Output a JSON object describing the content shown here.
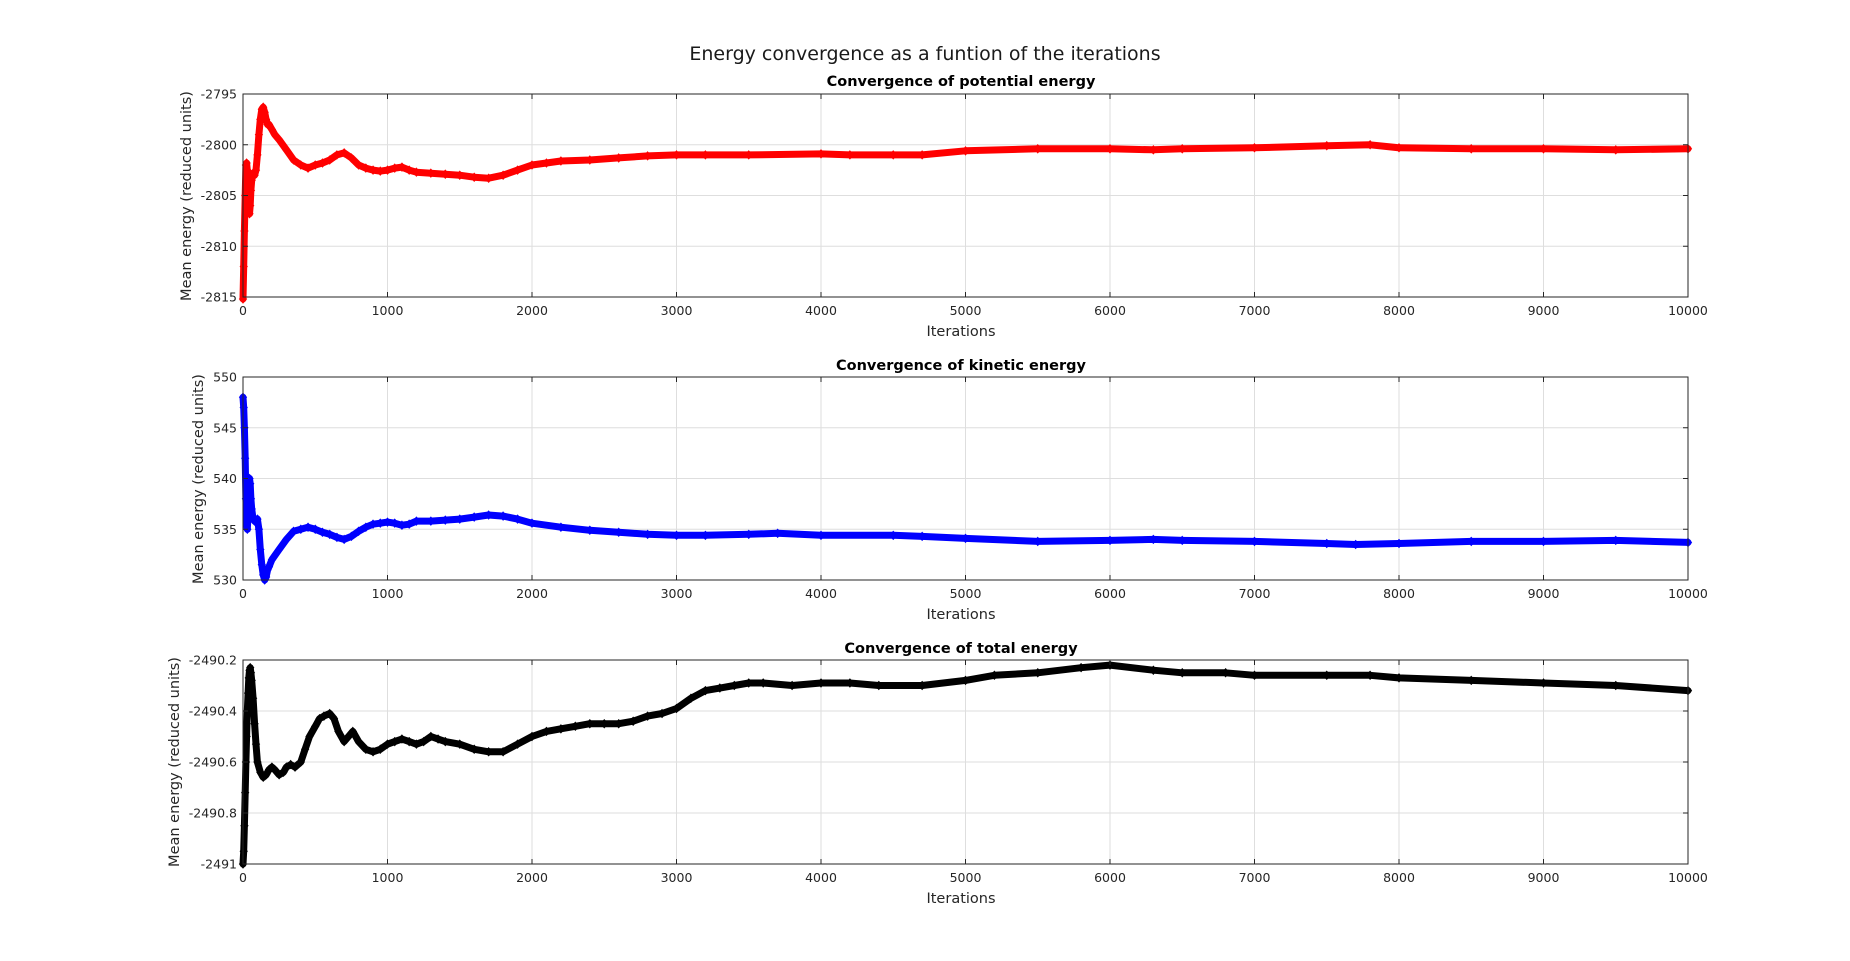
{
  "figure": {
    "title": "Energy convergence as a funtion of the iterations"
  },
  "chart_data": [
    {
      "type": "line",
      "marker": "diamond",
      "title": "Convergence of potential energy",
      "xlabel": "Iterations",
      "ylabel": "Mean energy (reduced units)",
      "xlim": [
        0,
        10000
      ],
      "ylim": [
        -2815,
        -2795
      ],
      "xticks": [
        0,
        1000,
        2000,
        3000,
        4000,
        5000,
        6000,
        7000,
        8000,
        9000,
        10000
      ],
      "yticks": [
        -2815,
        -2810,
        -2805,
        -2800,
        -2795
      ],
      "grid": true,
      "color": "#ff0000",
      "series": [
        {
          "x": [
            0,
            5,
            10,
            15,
            20,
            25,
            30,
            35,
            40,
            45,
            50,
            55,
            60,
            70,
            80,
            90,
            100,
            110,
            120,
            130,
            140,
            150,
            160,
            170,
            180,
            200,
            220,
            250,
            300,
            350,
            400,
            450,
            500,
            550,
            600,
            650,
            700,
            750,
            800,
            850,
            900,
            950,
            1000,
            1050,
            1100,
            1150,
            1200,
            1300,
            1400,
            1500,
            1600,
            1700,
            1800,
            1900,
            2000,
            2100,
            2200,
            2400,
            2600,
            2800,
            3000,
            3200,
            3500,
            4000,
            4200,
            4500,
            4700,
            5000,
            5500,
            6000,
            6300,
            6500,
            7000,
            7500,
            7800,
            8000,
            8500,
            9000,
            9500,
            10000
          ],
          "y": [
            -2815.2,
            -2812,
            -2808.5,
            -2805,
            -2802,
            -2801.8,
            -2802.5,
            -2804,
            -2806,
            -2806.8,
            -2806,
            -2804.5,
            -2803.5,
            -2802.8,
            -2803,
            -2802.5,
            -2801,
            -2799,
            -2797.5,
            -2796.5,
            -2796.3,
            -2796.8,
            -2797.5,
            -2798,
            -2798,
            -2798.5,
            -2799,
            -2799.5,
            -2800.5,
            -2801.5,
            -2802,
            -2802.3,
            -2802,
            -2801.8,
            -2801.5,
            -2801,
            -2800.8,
            -2801.3,
            -2802,
            -2802.3,
            -2802.5,
            -2802.6,
            -2802.5,
            -2802.3,
            -2802.2,
            -2802.5,
            -2802.7,
            -2802.8,
            -2802.9,
            -2803,
            -2803.2,
            -2803.3,
            -2803,
            -2802.5,
            -2802,
            -2801.8,
            -2801.6,
            -2801.5,
            -2801.3,
            -2801.1,
            -2801,
            -2801,
            -2801,
            -2800.9,
            -2801,
            -2801,
            -2801,
            -2800.6,
            -2800.4,
            -2800.4,
            -2800.5,
            -2800.4,
            -2800.3,
            -2800.1,
            -2800,
            -2800.3,
            -2800.4,
            -2800.4,
            -2800.5,
            -2800.4
          ]
        }
      ]
    },
    {
      "type": "line",
      "marker": "diamond",
      "title": "Convergence of kinetic energy",
      "xlabel": "Iterations",
      "ylabel": "Mean energy (reduced units)",
      "xlim": [
        0,
        10000
      ],
      "ylim": [
        530,
        550
      ],
      "xticks": [
        0,
        1000,
        2000,
        3000,
        4000,
        5000,
        6000,
        7000,
        8000,
        9000,
        10000
      ],
      "yticks": [
        530,
        535,
        540,
        545,
        550
      ],
      "grid": true,
      "color": "#0000ff",
      "series": [
        {
          "x": [
            0,
            5,
            10,
            15,
            20,
            25,
            30,
            35,
            40,
            45,
            50,
            55,
            60,
            70,
            80,
            90,
            100,
            110,
            120,
            130,
            140,
            150,
            160,
            170,
            180,
            200,
            250,
            300,
            350,
            400,
            450,
            500,
            550,
            600,
            650,
            700,
            750,
            800,
            850,
            900,
            950,
            1000,
            1050,
            1100,
            1150,
            1200,
            1300,
            1400,
            1500,
            1600,
            1700,
            1800,
            1900,
            2000,
            2200,
            2400,
            2600,
            2800,
            3000,
            3200,
            3500,
            3700,
            4000,
            4500,
            4700,
            5000,
            5500,
            6000,
            6300,
            6500,
            7000,
            7500,
            7700,
            8000,
            8500,
            9000,
            9500,
            10000
          ],
          "y": [
            548,
            547,
            545,
            542,
            538,
            535.5,
            535,
            536.5,
            538.5,
            540,
            539.5,
            538,
            537,
            536,
            535.8,
            535.7,
            536,
            535,
            533,
            531.5,
            530.5,
            530,
            530.3,
            531,
            531.3,
            532,
            533,
            534,
            534.8,
            535,
            535.2,
            535,
            534.7,
            534.5,
            534.2,
            534,
            534.3,
            534.8,
            535.2,
            535.5,
            535.6,
            535.7,
            535.6,
            535.4,
            535.5,
            535.8,
            535.8,
            535.9,
            536,
            536.2,
            536.4,
            536.3,
            536,
            535.6,
            535.2,
            534.9,
            534.7,
            534.5,
            534.4,
            534.4,
            534.5,
            534.6,
            534.4,
            534.4,
            534.3,
            534.1,
            533.8,
            533.9,
            534,
            533.9,
            533.8,
            533.6,
            533.5,
            533.6,
            533.8,
            533.8,
            533.9,
            533.7
          ]
        }
      ]
    },
    {
      "type": "line",
      "marker": "diamond",
      "title": "Convergence of total energy",
      "xlabel": "Iterations",
      "ylabel": "Mean energy (reduced units)",
      "xlim": [
        0,
        10000
      ],
      "ylim": [
        -2491,
        -2490.2
      ],
      "xticks": [
        0,
        1000,
        2000,
        3000,
        4000,
        5000,
        6000,
        7000,
        8000,
        9000,
        10000
      ],
      "yticks": [
        -2491,
        -2490.8,
        -2490.6,
        -2490.4,
        -2490.2
      ],
      "grid": true,
      "color": "#000000",
      "series": [
        {
          "x": [
            0,
            5,
            10,
            15,
            20,
            25,
            30,
            35,
            40,
            45,
            50,
            55,
            60,
            70,
            80,
            90,
            100,
            120,
            140,
            160,
            180,
            200,
            220,
            250,
            280,
            300,
            330,
            360,
            400,
            430,
            460,
            500,
            530,
            560,
            600,
            630,
            660,
            700,
            730,
            760,
            800,
            850,
            900,
            950,
            1000,
            1050,
            1100,
            1150,
            1200,
            1250,
            1300,
            1350,
            1400,
            1500,
            1600,
            1700,
            1800,
            1900,
            2000,
            2100,
            2200,
            2300,
            2400,
            2500,
            2600,
            2700,
            2800,
            2900,
            3000,
            3100,
            3200,
            3300,
            3400,
            3500,
            3600,
            3800,
            4000,
            4200,
            4400,
            4700,
            5000,
            5200,
            5500,
            5800,
            6000,
            6300,
            6500,
            6800,
            7000,
            7500,
            7800,
            8000,
            8500,
            9000,
            9500,
            10000
          ],
          "y": [
            -2491,
            -2490.95,
            -2490.85,
            -2490.72,
            -2490.6,
            -2490.5,
            -2490.4,
            -2490.33,
            -2490.27,
            -2490.24,
            -2490.23,
            -2490.25,
            -2490.28,
            -2490.35,
            -2490.45,
            -2490.53,
            -2490.6,
            -2490.64,
            -2490.66,
            -2490.65,
            -2490.63,
            -2490.62,
            -2490.63,
            -2490.65,
            -2490.64,
            -2490.62,
            -2490.61,
            -2490.62,
            -2490.6,
            -2490.55,
            -2490.5,
            -2490.46,
            -2490.43,
            -2490.42,
            -2490.41,
            -2490.43,
            -2490.48,
            -2490.52,
            -2490.5,
            -2490.48,
            -2490.52,
            -2490.55,
            -2490.56,
            -2490.55,
            -2490.53,
            -2490.52,
            -2490.51,
            -2490.52,
            -2490.53,
            -2490.52,
            -2490.5,
            -2490.51,
            -2490.52,
            -2490.53,
            -2490.55,
            -2490.56,
            -2490.56,
            -2490.53,
            -2490.5,
            -2490.48,
            -2490.47,
            -2490.46,
            -2490.45,
            -2490.45,
            -2490.45,
            -2490.44,
            -2490.42,
            -2490.41,
            -2490.39,
            -2490.35,
            -2490.32,
            -2490.31,
            -2490.3,
            -2490.29,
            -2490.29,
            -2490.3,
            -2490.29,
            -2490.29,
            -2490.3,
            -2490.3,
            -2490.28,
            -2490.26,
            -2490.25,
            -2490.23,
            -2490.22,
            -2490.24,
            -2490.25,
            -2490.25,
            -2490.26,
            -2490.26,
            -2490.26,
            -2490.27,
            -2490.28,
            -2490.29,
            -2490.3,
            -2490.32
          ]
        }
      ]
    }
  ]
}
